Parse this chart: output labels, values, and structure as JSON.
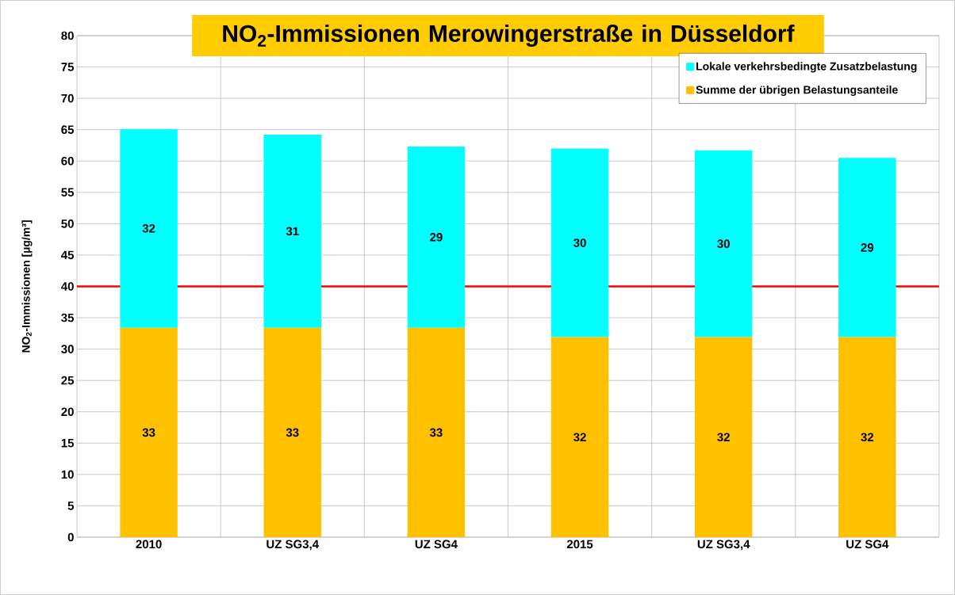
{
  "chart_data": {
    "type": "bar",
    "stacked": true,
    "title": "NO$_{2}$-Immissionen Merowingerstraße in Düsseldorf",
    "ylabel": "NO$_{2}$-Immissionen [µg/m³]",
    "categories": [
      "2010",
      "UZ SG3,4",
      "UZ SG4",
      "2015",
      "UZ SG3,4",
      "UZ SG4"
    ],
    "series": [
      {
        "name": "Summe der übrigen Belastungsanteile",
        "color": "#ffc000",
        "values": [
          33.4,
          33.4,
          33.4,
          31.9,
          31.9,
          31.9
        ],
        "value_labels": [
          "33",
          "33",
          "33",
          "32",
          "32",
          "32"
        ]
      },
      {
        "name": "Lokale verkehrsbedingte Zusatzbelastung",
        "color": "#00ffff",
        "values": [
          31.7,
          30.8,
          28.9,
          30.1,
          29.8,
          28.6
        ],
        "value_labels": [
          "32",
          "31",
          "29",
          "30",
          "30",
          "29"
        ]
      }
    ],
    "ylim": [
      0,
      80
    ],
    "yticks": [
      0,
      5,
      10,
      15,
      20,
      25,
      30,
      35,
      40,
      45,
      50,
      55,
      60,
      65,
      70,
      75,
      80
    ],
    "ref_lines": [
      {
        "axis": "y",
        "value": 40,
        "color": "#ff0000"
      }
    ],
    "grid": true,
    "legend": "top right"
  }
}
